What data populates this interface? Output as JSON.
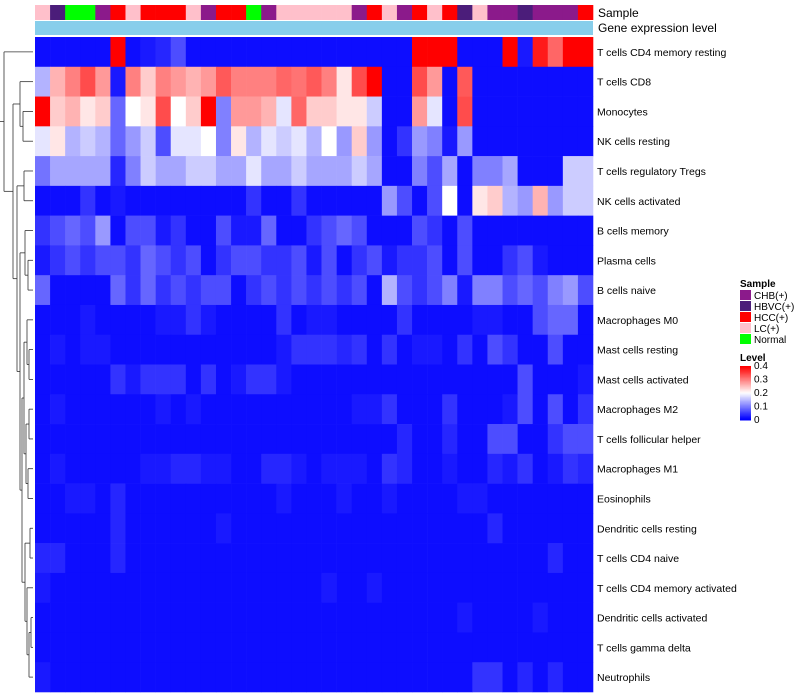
{
  "chart_data": {
    "type": "heatmap",
    "title": "",
    "annotation_tracks": [
      {
        "title": "Sample"
      },
      {
        "title": "Gene expression level"
      }
    ],
    "sample_annotation": [
      "LC(+)",
      "HBVC(+)",
      "Normal",
      "Normal",
      "CHB(+)",
      "HCC(+)",
      "LC(+)",
      "HCC(+)",
      "HCC(+)",
      "HCC(+)",
      "LC(+)",
      "CHB(+)",
      "HCC(+)",
      "HCC(+)",
      "Normal",
      "CHB(+)",
      "LC(+)",
      "LC(+)",
      "LC(+)",
      "LC(+)",
      "LC(+)",
      "CHB(+)",
      "HCC(+)",
      "LC(+)",
      "CHB(+)",
      "HCC(+)",
      "LC(+)",
      "HCC(+)",
      "HBVC(+)",
      "LC(+)",
      "CHB(+)",
      "CHB(+)",
      "HBVC(+)",
      "CHB(+)",
      "CHB(+)",
      "CHB(+)",
      "HCC(+)"
    ],
    "rows": [
      {
        "name": "T cells CD4 memory resting",
        "values": [
          0.01,
          0.01,
          0.01,
          0.01,
          0.01,
          0.4,
          0.01,
          0.02,
          0.03,
          0.06,
          0.01,
          0.01,
          0.01,
          0.01,
          0.01,
          0.01,
          0.01,
          0.01,
          0.01,
          0.01,
          0.01,
          0.01,
          0.01,
          0.01,
          0.01,
          0.4,
          0.4,
          0.4,
          0.01,
          0.01,
          0.01,
          0.4,
          0.02,
          0.38,
          0.32,
          0.4,
          0.4
        ]
      },
      {
        "name": "T cells CD8",
        "values": [
          0.14,
          0.26,
          0.3,
          0.34,
          0.28,
          0.02,
          0.3,
          0.24,
          0.3,
          0.28,
          0.26,
          0.28,
          0.33,
          0.3,
          0.3,
          0.3,
          0.32,
          0.31,
          0.33,
          0.3,
          0.22,
          0.34,
          0.4,
          0.01,
          0.01,
          0.34,
          0.28,
          0.01,
          0.33,
          0.01,
          0.01,
          0.01,
          0.01,
          0.01,
          0.01,
          0.01,
          0.01
        ]
      },
      {
        "name": "Monocytes",
        "values": [
          0.4,
          0.24,
          0.26,
          0.22,
          0.24,
          0.08,
          0.2,
          0.22,
          0.34,
          0.2,
          0.24,
          0.4,
          0.1,
          0.28,
          0.28,
          0.26,
          0.18,
          0.32,
          0.24,
          0.24,
          0.22,
          0.22,
          0.16,
          0.01,
          0.01,
          0.28,
          0.18,
          0.01,
          0.34,
          0.01,
          0.01,
          0.01,
          0.01,
          0.01,
          0.01,
          0.01,
          0.01
        ]
      },
      {
        "name": "NK cells resting",
        "values": [
          0.18,
          0.22,
          0.14,
          0.16,
          0.14,
          0.08,
          0.12,
          0.16,
          0.06,
          0.18,
          0.18,
          0.2,
          0.1,
          0.22,
          0.14,
          0.18,
          0.16,
          0.18,
          0.14,
          0.2,
          0.12,
          0.24,
          0.12,
          0.01,
          0.04,
          0.12,
          0.1,
          0.02,
          0.12,
          0.01,
          0.01,
          0.01,
          0.01,
          0.01,
          0.01,
          0.01,
          0.01
        ]
      },
      {
        "name": "T cells regulatory  Tregs",
        "values": [
          0.09,
          0.13,
          0.13,
          0.13,
          0.13,
          0.03,
          0.1,
          0.16,
          0.13,
          0.13,
          0.16,
          0.16,
          0.13,
          0.13,
          0.18,
          0.13,
          0.13,
          0.16,
          0.13,
          0.13,
          0.13,
          0.16,
          0.13,
          0.01,
          0.01,
          0.1,
          0.06,
          0.13,
          0.01,
          0.1,
          0.1,
          0.13,
          0.01,
          0.01,
          0.01,
          0.16,
          0.16
        ]
      },
      {
        "name": "NK cells activated",
        "values": [
          0.01,
          0.01,
          0.01,
          0.04,
          0.01,
          0.02,
          0.01,
          0.01,
          0.01,
          0.01,
          0.01,
          0.01,
          0.01,
          0.01,
          0.04,
          0.01,
          0.01,
          0.04,
          0.01,
          0.01,
          0.01,
          0.01,
          0.01,
          0.12,
          0.06,
          0.01,
          0.06,
          0.2,
          0.01,
          0.22,
          0.24,
          0.14,
          0.12,
          0.26,
          0.12,
          0.16,
          0.16
        ]
      },
      {
        "name": "B cells memory",
        "values": [
          0.04,
          0.06,
          0.08,
          0.06,
          0.12,
          0.01,
          0.06,
          0.06,
          0.02,
          0.04,
          0.01,
          0.01,
          0.06,
          0.02,
          0.02,
          0.08,
          0.01,
          0.01,
          0.04,
          0.06,
          0.08,
          0.06,
          0.01,
          0.01,
          0.01,
          0.06,
          0.04,
          0.01,
          0.06,
          0.01,
          0.01,
          0.01,
          0.01,
          0.01,
          0.01,
          0.01,
          0.01
        ]
      },
      {
        "name": "Plasma cells",
        "values": [
          0.02,
          0.04,
          0.06,
          0.04,
          0.06,
          0.06,
          0.04,
          0.08,
          0.06,
          0.04,
          0.06,
          0.01,
          0.04,
          0.06,
          0.06,
          0.04,
          0.04,
          0.06,
          0.02,
          0.06,
          0.01,
          0.04,
          0.06,
          0.02,
          0.04,
          0.04,
          0.06,
          0.01,
          0.06,
          0.01,
          0.01,
          0.04,
          0.06,
          0.02,
          0.01,
          0.01,
          0.01
        ]
      },
      {
        "name": "B cells naive",
        "values": [
          0.08,
          0.01,
          0.01,
          0.01,
          0.01,
          0.08,
          0.04,
          0.08,
          0.04,
          0.06,
          0.04,
          0.06,
          0.06,
          0.01,
          0.04,
          0.06,
          0.04,
          0.06,
          0.04,
          0.06,
          0.04,
          0.06,
          0.01,
          0.14,
          0.06,
          0.04,
          0.06,
          0.1,
          0.02,
          0.1,
          0.1,
          0.06,
          0.08,
          0.06,
          0.1,
          0.12,
          0.06
        ]
      },
      {
        "name": "Macrophages M0",
        "values": [
          0.01,
          0.01,
          0.01,
          0.02,
          0.01,
          0.01,
          0.01,
          0.01,
          0.02,
          0.02,
          0.04,
          0.02,
          0.01,
          0.01,
          0.01,
          0.01,
          0.04,
          0.01,
          0.02,
          0.02,
          0.01,
          0.01,
          0.01,
          0.01,
          0.04,
          0.01,
          0.01,
          0.01,
          0.01,
          0.02,
          0.02,
          0.01,
          0.01,
          0.06,
          0.08,
          0.08,
          0.01
        ]
      },
      {
        "name": "Mast cells resting",
        "values": [
          0.01,
          0.02,
          0.01,
          0.02,
          0.02,
          0.01,
          0.01,
          0.01,
          0.01,
          0.01,
          0.01,
          0.01,
          0.01,
          0.01,
          0.01,
          0.01,
          0.02,
          0.04,
          0.04,
          0.04,
          0.03,
          0.04,
          0.01,
          0.04,
          0.01,
          0.02,
          0.02,
          0.01,
          0.04,
          0.01,
          0.06,
          0.04,
          0.01,
          0.01,
          0.06,
          0.01,
          0.01
        ]
      },
      {
        "name": "Mast cells activated",
        "values": [
          0.01,
          0.01,
          0.01,
          0.01,
          0.01,
          0.04,
          0.02,
          0.04,
          0.04,
          0.04,
          0.01,
          0.04,
          0.01,
          0.02,
          0.04,
          0.04,
          0.02,
          0.01,
          0.01,
          0.01,
          0.01,
          0.01,
          0.01,
          0.01,
          0.01,
          0.01,
          0.01,
          0.01,
          0.01,
          0.01,
          0.01,
          0.01,
          0.06,
          0.01,
          0.01,
          0.01,
          0.02
        ]
      },
      {
        "name": "Macrophages M2",
        "values": [
          0.01,
          0.02,
          0.01,
          0.01,
          0.01,
          0.01,
          0.01,
          0.01,
          0.02,
          0.01,
          0.02,
          0.01,
          0.01,
          0.01,
          0.01,
          0.01,
          0.01,
          0.01,
          0.01,
          0.01,
          0.01,
          0.02,
          0.02,
          0.04,
          0.01,
          0.01,
          0.01,
          0.04,
          0.01,
          0.01,
          0.01,
          0.02,
          0.06,
          0.01,
          0.06,
          0.01,
          0.04
        ]
      },
      {
        "name": "T cells follicular helper",
        "values": [
          0.01,
          0.01,
          0.01,
          0.01,
          0.01,
          0.01,
          0.01,
          0.01,
          0.01,
          0.01,
          0.01,
          0.01,
          0.01,
          0.01,
          0.01,
          0.01,
          0.01,
          0.01,
          0.01,
          0.01,
          0.01,
          0.01,
          0.01,
          0.01,
          0.03,
          0.01,
          0.01,
          0.03,
          0.01,
          0.01,
          0.06,
          0.06,
          0.01,
          0.01,
          0.04,
          0.06,
          0.06
        ]
      },
      {
        "name": "Macrophages M1",
        "values": [
          0.01,
          0.02,
          0.01,
          0.01,
          0.01,
          0.01,
          0.01,
          0.02,
          0.02,
          0.03,
          0.03,
          0.02,
          0.02,
          0.01,
          0.01,
          0.03,
          0.03,
          0.02,
          0.01,
          0.02,
          0.02,
          0.02,
          0.01,
          0.04,
          0.03,
          0.01,
          0.01,
          0.02,
          0.01,
          0.01,
          0.03,
          0.02,
          0.04,
          0.01,
          0.02,
          0.04,
          0.03
        ]
      },
      {
        "name": "Eosinophils",
        "values": [
          0.01,
          0.01,
          0.02,
          0.02,
          0.01,
          0.03,
          0.01,
          0.01,
          0.01,
          0.01,
          0.01,
          0.01,
          0.01,
          0.01,
          0.01,
          0.01,
          0.02,
          0.01,
          0.01,
          0.01,
          0.02,
          0.01,
          0.01,
          0.02,
          0.01,
          0.01,
          0.01,
          0.01,
          0.02,
          0.02,
          0.01,
          0.01,
          0.01,
          0.01,
          0.01,
          0.01,
          0.01
        ]
      },
      {
        "name": "Dendritic cells resting",
        "values": [
          0.01,
          0.01,
          0.01,
          0.01,
          0.01,
          0.03,
          0.01,
          0.01,
          0.01,
          0.01,
          0.01,
          0.01,
          0.02,
          0.01,
          0.01,
          0.01,
          0.01,
          0.01,
          0.01,
          0.01,
          0.01,
          0.01,
          0.01,
          0.01,
          0.01,
          0.01,
          0.01,
          0.01,
          0.01,
          0.01,
          0.03,
          0.01,
          0.01,
          0.01,
          0.01,
          0.01,
          0.01
        ]
      },
      {
        "name": "T cells CD4 naive",
        "values": [
          0.03,
          0.03,
          0.01,
          0.01,
          0.01,
          0.03,
          0.01,
          0.01,
          0.01,
          0.01,
          0.01,
          0.01,
          0.01,
          0.01,
          0.01,
          0.01,
          0.01,
          0.01,
          0.01,
          0.01,
          0.01,
          0.01,
          0.01,
          0.01,
          0.01,
          0.01,
          0.01,
          0.01,
          0.01,
          0.01,
          0.01,
          0.01,
          0.01,
          0.01,
          0.03,
          0.01,
          0.01
        ]
      },
      {
        "name": "T cells CD4 memory activated",
        "values": [
          0.02,
          0.01,
          0.01,
          0.01,
          0.01,
          0.01,
          0.01,
          0.01,
          0.01,
          0.01,
          0.01,
          0.01,
          0.01,
          0.01,
          0.01,
          0.01,
          0.01,
          0.01,
          0.01,
          0.02,
          0.01,
          0.01,
          0.02,
          0.01,
          0.01,
          0.01,
          0.01,
          0.01,
          0.01,
          0.01,
          0.01,
          0.01,
          0.01,
          0.01,
          0.01,
          0.01,
          0.01
        ]
      },
      {
        "name": "Dendritic cells activated",
        "values": [
          0.01,
          0.01,
          0.01,
          0.01,
          0.01,
          0.01,
          0.01,
          0.01,
          0.01,
          0.01,
          0.01,
          0.01,
          0.01,
          0.01,
          0.01,
          0.01,
          0.01,
          0.01,
          0.01,
          0.01,
          0.01,
          0.01,
          0.01,
          0.01,
          0.01,
          0.01,
          0.01,
          0.01,
          0.02,
          0.01,
          0.01,
          0.01,
          0.01,
          0.02,
          0.01,
          0.01,
          0.01
        ]
      },
      {
        "name": "T cells gamma delta",
        "values": [
          0.01,
          0.01,
          0.01,
          0.01,
          0.01,
          0.01,
          0.01,
          0.01,
          0.01,
          0.01,
          0.01,
          0.01,
          0.01,
          0.01,
          0.01,
          0.01,
          0.01,
          0.01,
          0.01,
          0.01,
          0.01,
          0.01,
          0.01,
          0.01,
          0.01,
          0.01,
          0.01,
          0.01,
          0.01,
          0.01,
          0.01,
          0.01,
          0.01,
          0.01,
          0.01,
          0.01,
          0.01
        ]
      },
      {
        "name": "Neutrophils",
        "values": [
          0.02,
          0.01,
          0.01,
          0.01,
          0.01,
          0.01,
          0.01,
          0.01,
          0.01,
          0.01,
          0.01,
          0.01,
          0.01,
          0.01,
          0.01,
          0.01,
          0.01,
          0.01,
          0.01,
          0.01,
          0.01,
          0.01,
          0.01,
          0.01,
          0.01,
          0.01,
          0.01,
          0.01,
          0.01,
          0.04,
          0.04,
          0.01,
          0.03,
          0.01,
          0.03,
          0.01,
          0.01
        ]
      }
    ],
    "color_scale": {
      "min": 0,
      "max": 0.4,
      "low_color": "#0000ff",
      "mid_color": "#ffffff",
      "high_color": "#ff0000",
      "mid_value": 0.2
    },
    "legend_sample": {
      "title": "Sample",
      "entries": [
        {
          "label": "CHB(+)",
          "color": "#8b1a8b"
        },
        {
          "label": "HBVC(+)",
          "color": "#4b1d7a"
        },
        {
          "label": "HCC(+)",
          "color": "#ff0000"
        },
        {
          "label": "LC(+)",
          "color": "#ffc0cb"
        },
        {
          "label": "Normal",
          "color": "#00ff00"
        }
      ]
    },
    "legend_level": {
      "title": "Level",
      "ticks": [
        {
          "value": 0.4,
          "label": "0.4"
        },
        {
          "value": 0.3,
          "label": "0.3"
        },
        {
          "value": 0.2,
          "label": "0.2"
        },
        {
          "value": 0.1,
          "label": "0.1"
        },
        {
          "value": 0,
          "label": "0"
        }
      ]
    },
    "gene_expression_track_color": "#87ceeb",
    "dendrogram": "row clustering tree shown on left"
  }
}
